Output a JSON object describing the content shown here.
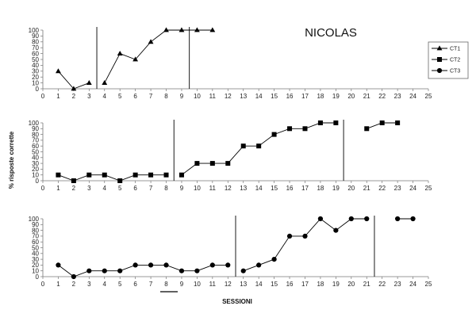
{
  "chart_data": {
    "type": "line",
    "title": "NICOLAS",
    "xlabel": "SESSIONI",
    "ylabel": "% risposte corrette",
    "legend": {
      "placement": "right",
      "entries": [
        "CT1",
        "CT2",
        "CT3"
      ]
    },
    "panels": [
      {
        "series": {
          "name": "CT1",
          "marker": "triangle",
          "segments": [
            [
              [
                1,
                30
              ],
              [
                2,
                0
              ],
              [
                3,
                10
              ]
            ],
            [
              [
                4,
                10
              ],
              [
                5,
                60
              ],
              [
                6,
                50
              ],
              [
                7,
                80
              ],
              [
                8,
                100
              ],
              [
                9,
                100
              ],
              [
                10,
                100
              ],
              [
                11,
                100
              ]
            ]
          ]
        },
        "phase_lines": [
          3.5,
          9.5
        ],
        "xlim": [
          0,
          25
        ],
        "ylim": [
          0,
          100
        ]
      },
      {
        "series": {
          "name": "CT2",
          "marker": "square",
          "segments": [
            [
              [
                1,
                10
              ],
              [
                2,
                0
              ],
              [
                3,
                10
              ],
              [
                4,
                10
              ],
              [
                5,
                0
              ],
              [
                6,
                10
              ],
              [
                7,
                10
              ],
              [
                8,
                10
              ]
            ],
            [
              [
                9,
                10
              ],
              [
                10,
                30
              ],
              [
                11,
                30
              ],
              [
                12,
                30
              ],
              [
                13,
                60
              ],
              [
                14,
                60
              ],
              [
                15,
                80
              ],
              [
                16,
                90
              ],
              [
                17,
                90
              ],
              [
                18,
                100
              ],
              [
                19,
                100
              ]
            ],
            [
              [
                21,
                90
              ],
              [
                22,
                100
              ],
              [
                23,
                100
              ]
            ]
          ]
        },
        "phase_lines": [
          8.5,
          19.5
        ],
        "xlim": [
          0,
          25
        ],
        "ylim": [
          0,
          100
        ]
      },
      {
        "series": {
          "name": "CT3",
          "marker": "circle",
          "segments": [
            [
              [
                1,
                20
              ],
              [
                2,
                0
              ],
              [
                3,
                10
              ],
              [
                4,
                10
              ],
              [
                5,
                10
              ],
              [
                6,
                20
              ],
              [
                7,
                20
              ],
              [
                8,
                20
              ],
              [
                9,
                10
              ],
              [
                10,
                10
              ],
              [
                11,
                20
              ],
              [
                12,
                20
              ]
            ],
            [
              [
                13,
                10
              ],
              [
                14,
                20
              ],
              [
                15,
                30
              ],
              [
                16,
                70
              ],
              [
                17,
                70
              ],
              [
                18,
                100
              ],
              [
                19,
                80
              ],
              [
                20,
                100
              ],
              [
                21,
                100
              ]
            ],
            [
              [
                23,
                100
              ],
              [
                24,
                100
              ]
            ]
          ]
        },
        "phase_lines": [
          12.5,
          21.5
        ],
        "xlim": [
          0,
          25
        ],
        "ylim": [
          0,
          100
        ]
      }
    ],
    "x_ticks": [
      0,
      1,
      2,
      3,
      4,
      5,
      6,
      7,
      8,
      9,
      10,
      11,
      12,
      13,
      14,
      15,
      16,
      17,
      18,
      19,
      20,
      21,
      22,
      23,
      24,
      25
    ],
    "y_ticks": [
      0,
      10,
      20,
      30,
      40,
      50,
      60,
      70,
      80,
      90,
      100
    ],
    "grid": false
  }
}
